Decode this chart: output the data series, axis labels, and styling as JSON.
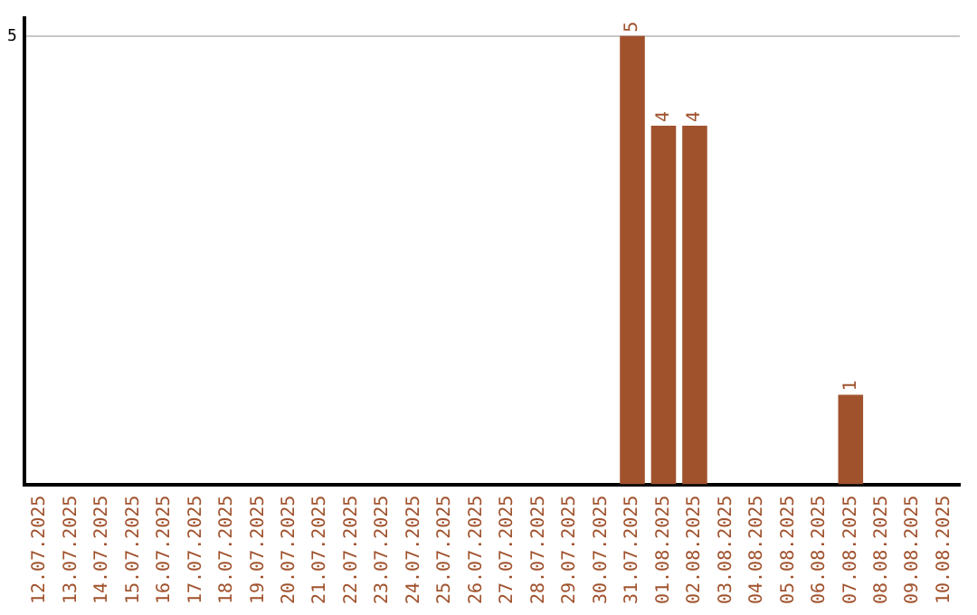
{
  "chart_data": {
    "type": "bar",
    "categories": [
      "12.07.2025",
      "13.07.2025",
      "14.07.2025",
      "15.07.2025",
      "16.07.2025",
      "17.07.2025",
      "18.07.2025",
      "19.07.2025",
      "20.07.2025",
      "21.07.2025",
      "22.07.2025",
      "23.07.2025",
      "24.07.2025",
      "25.07.2025",
      "26.07.2025",
      "27.07.2025",
      "28.07.2025",
      "29.07.2025",
      "30.07.2025",
      "31.07.2025",
      "01.08.2025",
      "02.08.2025",
      "03.08.2025",
      "04.08.2025",
      "05.08.2025",
      "06.08.2025",
      "07.08.2025",
      "08.08.2025",
      "09.08.2025",
      "10.08.2025"
    ],
    "values": [
      null,
      null,
      null,
      null,
      null,
      null,
      null,
      null,
      null,
      null,
      null,
      null,
      null,
      null,
      null,
      null,
      null,
      null,
      null,
      5,
      4,
      4,
      null,
      null,
      null,
      null,
      1,
      null,
      null,
      null
    ],
    "color": "#a0522d",
    "ylim": [
      0,
      5.2
    ],
    "yticks": [
      5
    ],
    "grid": "y",
    "data_labels": true
  }
}
